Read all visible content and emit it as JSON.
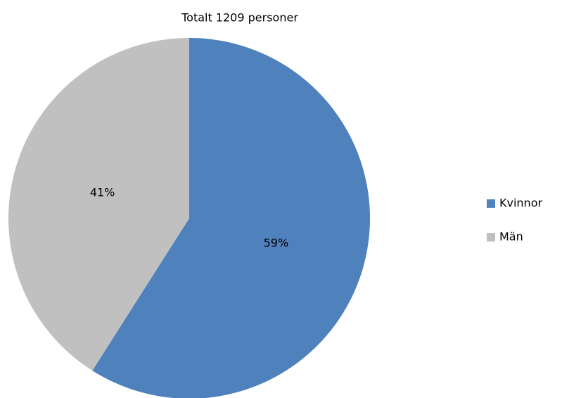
{
  "chart_data": {
    "type": "pie",
    "title": "Totalt 1209 personer",
    "categories": [
      "Kvinnor",
      "Män"
    ],
    "values": [
      59,
      41
    ],
    "value_labels": [
      "59%",
      "41%"
    ],
    "colors": [
      "#4f81bd",
      "#c0c0c0"
    ],
    "legend": "right"
  }
}
